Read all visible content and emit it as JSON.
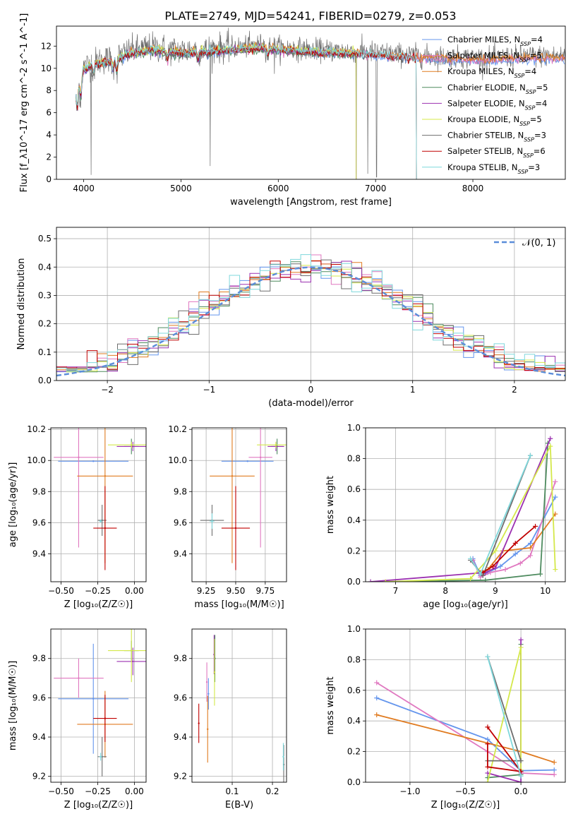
{
  "title": "PLATE=2749, MJD=54241, FIBERID=0279, z=0.053",
  "colors": {
    "chabrier_miles": "#6495ED",
    "salpeter_miles": "#E078C0",
    "kroupa_miles": "#E07B20",
    "chabrier_elodie": "#4E8B5F",
    "salpeter_elodie": "#9B30B0",
    "kroupa_elodie": "#D4E84A",
    "chabrier_stelib": "#6E6E6E",
    "salpeter_stelib": "#C00000",
    "kroupa_stelib": "#7FD8DC",
    "normal": "#5B8DD9"
  },
  "legend": [
    {
      "key": "chabrier_miles",
      "text": "Chabrier MILES, N",
      "sub": "SSP",
      "tail": "=4"
    },
    {
      "key": "salpeter_miles",
      "text": "Salpeter MILES, N",
      "sub": "SSP",
      "tail": "=5"
    },
    {
      "key": "kroupa_miles",
      "text": "Kroupa MILES, N",
      "sub": "SSP",
      "tail": "=4"
    },
    {
      "key": "chabrier_elodie",
      "text": "Chabrier ELODIE, N",
      "sub": "SSP",
      "tail": "=5"
    },
    {
      "key": "salpeter_elodie",
      "text": "Salpeter ELODIE, N",
      "sub": "SSP",
      "tail": "=4"
    },
    {
      "key": "kroupa_elodie",
      "text": "Kroupa ELODIE, N",
      "sub": "SSP",
      "tail": "=5"
    },
    {
      "key": "chabrier_stelib",
      "text": "Chabrier STELIB, N",
      "sub": "SSP",
      "tail": "=3"
    },
    {
      "key": "salpeter_stelib",
      "text": "Salpeter STELIB, N",
      "sub": "SSP",
      "tail": "=6"
    },
    {
      "key": "kroupa_stelib",
      "text": "Kroupa STELIB, N",
      "sub": "SSP",
      "tail": "=3"
    }
  ],
  "chart_data": [
    {
      "id": "spectrum",
      "type": "line",
      "xlabel": "wavelength [Angstrom, rest frame]",
      "ylabel": "Flux [f_λ10^-17 erg cm^-2 s^-1 A^-1]",
      "xlim": [
        3720,
        8950
      ],
      "ylim": [
        0,
        13.8
      ],
      "xticks": [
        4000,
        5000,
        6000,
        7000,
        8000
      ],
      "yticks": [
        0,
        2,
        4,
        6,
        8,
        10,
        12
      ],
      "grid": false,
      "continuum": [
        [
          3920,
          8.2
        ],
        [
          4000,
          10.1
        ],
        [
          4100,
          10.6
        ],
        [
          4300,
          10.9
        ],
        [
          4500,
          11.6
        ],
        [
          4700,
          11.9
        ],
        [
          5000,
          11.6
        ],
        [
          5300,
          11.8
        ],
        [
          5600,
          11.9
        ],
        [
          5800,
          12.1
        ],
        [
          6000,
          11.9
        ],
        [
          6300,
          11.7
        ],
        [
          6600,
          11.6
        ],
        [
          6900,
          11.5
        ],
        [
          7200,
          11.3
        ],
        [
          7500,
          11.1
        ],
        [
          7800,
          11.0
        ],
        [
          8200,
          10.9
        ],
        [
          8500,
          11.1
        ],
        [
          8950,
          11.1
        ]
      ],
      "model_ranges": {
        "chabrier_miles": [
          3920,
          8950
        ],
        "salpeter_miles": [
          3920,
          8950
        ],
        "kroupa_miles": [
          3920,
          8950
        ],
        "chabrier_elodie": [
          3920,
          6800
        ],
        "salpeter_elodie": [
          3920,
          6800
        ],
        "kroupa_elodie": [
          3920,
          6800
        ],
        "chabrier_stelib": [
          3920,
          7420
        ],
        "salpeter_stelib": [
          3920,
          7420
        ],
        "kroupa_stelib": [
          3920,
          7420
        ]
      },
      "data_range": [
        3920,
        8950
      ]
    },
    {
      "id": "residuals",
      "type": "step",
      "xlabel": "(data-model)/error",
      "ylabel": "Normed distribution",
      "xlim": [
        -2.5,
        2.5
      ],
      "ylim": [
        0,
        0.54
      ],
      "xticks": [
        -2,
        -1,
        0,
        1,
        2
      ],
      "yticks": [
        0.0,
        0.1,
        0.2,
        0.3,
        0.4,
        0.5
      ],
      "grid": true,
      "bins": 50,
      "normal_label": "𝒩(0, 1)",
      "legend_placement": "top-right"
    },
    {
      "id": "age_vs_Z",
      "type": "errorbar",
      "xlabel": "Z [log₁₀(Z/Z☉)]",
      "ylabel": "age  [log₁₀(age/yr)]",
      "xlim": [
        -0.57,
        0.08
      ],
      "ylim": [
        9.22,
        10.21
      ],
      "xticks": [
        -0.5,
        -0.25,
        0.0
      ],
      "yticks": [
        9.4,
        9.6,
        9.8,
        10.0,
        10.2
      ],
      "grid": true,
      "points": [
        {
          "key": "chabrier_miles",
          "x": -0.28,
          "xerr": 0.24,
          "y": 9.995,
          "yerr": 0.0
        },
        {
          "key": "salpeter_miles",
          "x": -0.38,
          "xerr": 0.17,
          "y": 10.02,
          "yerr": 0.58
        },
        {
          "key": "kroupa_miles",
          "x": -0.2,
          "xerr": 0.19,
          "y": 9.9,
          "yerr": 0.56
        },
        {
          "key": "chabrier_elodie",
          "x": -0.02,
          "xerr": 0.05,
          "y": 10.09,
          "yerr": 0.05
        },
        {
          "key": "salpeter_elodie",
          "x": -0.01,
          "xerr": 0.11,
          "y": 10.09,
          "yerr": 0.03
        },
        {
          "key": "kroupa_elodie",
          "x": -0.02,
          "xerr": 0.16,
          "y": 10.1,
          "yerr": 0.02
        },
        {
          "key": "chabrier_stelib",
          "x": -0.22,
          "xerr": 0.03,
          "y": 9.615,
          "yerr": 0.1
        },
        {
          "key": "salpeter_stelib",
          "x": -0.2,
          "xerr": 0.08,
          "y": 9.565,
          "yerr": 0.27
        },
        {
          "key": "kroupa_stelib",
          "x": -0.23,
          "xerr": 0.01,
          "y": 9.61,
          "yerr": 0.01
        }
      ]
    },
    {
      "id": "age_vs_mass",
      "type": "errorbar",
      "xlabel": "mass [log₁₀(M/M☉)]",
      "ylabel": "",
      "xlim": [
        9.13,
        9.93
      ],
      "ylim": [
        9.22,
        10.21
      ],
      "xticks": [
        9.25,
        9.5,
        9.75
      ],
      "yticks": [
        9.4,
        9.6,
        9.8,
        10.0,
        10.2
      ],
      "grid": true,
      "points": [
        {
          "key": "chabrier_miles",
          "x": 9.6,
          "xerr": 0.22,
          "y": 9.995,
          "yerr": 0.0
        },
        {
          "key": "salpeter_miles",
          "x": 9.71,
          "xerr": 0.1,
          "y": 10.02,
          "yerr": 0.58
        },
        {
          "key": "kroupa_miles",
          "x": 9.47,
          "xerr": 0.19,
          "y": 9.9,
          "yerr": 0.56
        },
        {
          "key": "chabrier_elodie",
          "x": 9.85,
          "xerr": 0.05,
          "y": 10.09,
          "yerr": 0.05
        },
        {
          "key": "salpeter_elodie",
          "x": 9.84,
          "xerr": 0.07,
          "y": 10.09,
          "yerr": 0.03
        },
        {
          "key": "kroupa_elodie",
          "x": 9.84,
          "xerr": 0.16,
          "y": 10.1,
          "yerr": 0.02
        },
        {
          "key": "chabrier_stelib",
          "x": 9.3,
          "xerr": 0.1,
          "y": 9.615,
          "yerr": 0.1
        },
        {
          "key": "salpeter_stelib",
          "x": 9.5,
          "xerr": 0.12,
          "y": 9.565,
          "yerr": 0.27
        },
        {
          "key": "kroupa_stelib",
          "x": 9.3,
          "xerr": 0.02,
          "y": 9.61,
          "yerr": 0.05
        }
      ]
    },
    {
      "id": "weight_vs_age",
      "type": "line",
      "xlabel": "age  [log₁₀(age/yr)]",
      "ylabel": "mass weight",
      "xlim": [
        6.4,
        10.4
      ],
      "ylim": [
        0,
        1.0
      ],
      "xticks": [
        7,
        8,
        9,
        10
      ],
      "yticks": [
        0.0,
        0.2,
        0.4,
        0.6,
        0.8,
        1.0
      ],
      "grid": true,
      "series": [
        {
          "key": "chabrier_miles",
          "x": [
            8.55,
            8.7,
            8.85,
            9.1,
            9.4,
            9.7,
            10.2
          ],
          "y": [
            0.15,
            0.04,
            0.06,
            0.1,
            0.18,
            0.25,
            0.55
          ]
        },
        {
          "key": "salpeter_miles",
          "x": [
            8.55,
            8.7,
            8.9,
            9.2,
            9.5,
            9.7,
            10.2
          ],
          "y": [
            0.14,
            0.03,
            0.06,
            0.08,
            0.12,
            0.17,
            0.65
          ]
        },
        {
          "key": "kroupa_miles",
          "x": [
            8.7,
            8.85,
            9.15,
            9.7,
            10.2
          ],
          "y": [
            0.06,
            0.08,
            0.2,
            0.22,
            0.44
          ]
        },
        {
          "key": "chabrier_elodie",
          "x": [
            7.0,
            8.8,
            9.9,
            10.05
          ],
          "y": [
            0.0,
            0.01,
            0.05,
            0.9
          ]
        },
        {
          "key": "salpeter_elodie",
          "x": [
            6.5,
            8.8,
            9.0,
            10.1
          ],
          "y": [
            0.0,
            0.06,
            0.09,
            0.93
          ]
        },
        {
          "key": "kroupa_elodie",
          "x": [
            6.8,
            8.5,
            9.0,
            10.1,
            10.2
          ],
          "y": [
            0.0,
            0.02,
            0.2,
            0.88,
            0.08
          ]
        },
        {
          "key": "chabrier_stelib",
          "x": [
            8.5,
            8.75,
            9.7
          ],
          "y": [
            0.14,
            0.04,
            0.82
          ]
        },
        {
          "key": "salpeter_stelib",
          "x": [
            8.75,
            8.95,
            9.4,
            9.8
          ],
          "y": [
            0.06,
            0.1,
            0.25,
            0.36
          ]
        },
        {
          "key": "kroupa_stelib",
          "x": [
            8.5,
            8.7,
            9.7
          ],
          "y": [
            0.15,
            0.05,
            0.82
          ]
        }
      ]
    },
    {
      "id": "mass_vs_Z",
      "type": "errorbar",
      "xlabel": "Z [log₁₀(Z/Z☉)]",
      "ylabel": "mass [log₁₀(M/M☉)]",
      "xlim": [
        -0.57,
        0.08
      ],
      "ylim": [
        9.17,
        9.95
      ],
      "xticks": [
        -0.5,
        -0.25,
        0.0
      ],
      "yticks": [
        9.2,
        9.4,
        9.6,
        9.8
      ],
      "grid": true,
      "points": [
        {
          "key": "chabrier_miles",
          "x": -0.28,
          "xerr": 0.24,
          "y": 9.595,
          "yerr": 0.28
        },
        {
          "key": "salpeter_miles",
          "x": -0.38,
          "xerr": 0.17,
          "y": 9.7,
          "yerr": 0.1
        },
        {
          "key": "kroupa_miles",
          "x": -0.2,
          "xerr": 0.19,
          "y": 9.465,
          "yerr": 0.17
        },
        {
          "key": "chabrier_elodie",
          "x": -0.02,
          "xerr": 0.05,
          "y": 9.84,
          "yerr": 0.05
        },
        {
          "key": "salpeter_elodie",
          "x": -0.01,
          "xerr": 0.11,
          "y": 9.785,
          "yerr": 0.07
        },
        {
          "key": "kroupa_elodie",
          "x": -0.02,
          "xerr": 0.16,
          "y": 9.84,
          "yerr": 0.16
        },
        {
          "key": "chabrier_stelib",
          "x": -0.22,
          "xerr": 0.03,
          "y": 9.3,
          "yerr": 0.1
        },
        {
          "key": "salpeter_stelib",
          "x": -0.2,
          "xerr": 0.08,
          "y": 9.495,
          "yerr": 0.12
        },
        {
          "key": "kroupa_stelib",
          "x": -0.23,
          "xerr": 0.01,
          "y": 9.3,
          "yerr": 0.02
        }
      ]
    },
    {
      "id": "mass_vs_ebv",
      "type": "errorbar",
      "xlabel": "E(B-V)",
      "ylabel": "",
      "xlim": [
        0.0,
        0.235
      ],
      "ylim": [
        9.17,
        9.95
      ],
      "xticks": [
        0.1,
        0.2
      ],
      "yticks": [
        9.2,
        9.4,
        9.6,
        9.8
      ],
      "grid": true,
      "points": [
        {
          "key": "chabrier_miles",
          "x": 0.041,
          "y": 9.62,
          "yerr": 0.08
        },
        {
          "key": "salpeter_miles",
          "x": 0.037,
          "y": 9.68,
          "yerr": 0.1
        },
        {
          "key": "kroupa_miles",
          "x": 0.039,
          "y": 9.44,
          "yerr": 0.17
        },
        {
          "key": "chabrier_elodie",
          "x": 0.057,
          "y": 9.8,
          "yerr": 0.12
        },
        {
          "key": "salpeter_elodie",
          "x": 0.055,
          "y": 9.82,
          "yerr": 0.1
        },
        {
          "key": "kroupa_elodie",
          "x": 0.056,
          "y": 9.73,
          "yerr": 0.17
        },
        {
          "key": "chabrier_stelib",
          "x": 0.228,
          "y": 9.26,
          "yerr": 0.1
        },
        {
          "key": "salpeter_stelib",
          "x": 0.017,
          "y": 9.47,
          "yerr": 0.1
        },
        {
          "key": "kroupa_stelib",
          "x": 0.227,
          "y": 9.3,
          "yerr": 0.07
        }
      ]
    },
    {
      "id": "weight_vs_Z",
      "type": "line",
      "xlabel": "Z [log₁₀(Z/Z☉)]",
      "ylabel": "mass weight",
      "xlim": [
        -1.4,
        0.4
      ],
      "ylim": [
        0,
        1.0
      ],
      "xticks": [
        -1.0,
        -0.5,
        0.0
      ],
      "yticks": [
        0.0,
        0.2,
        0.4,
        0.6,
        0.8,
        1.0
      ],
      "grid": true,
      "series": [
        {
          "key": "chabrier_miles",
          "x": [
            -1.3,
            -0.3,
            0.0,
            0.3
          ],
          "y": [
            0.55,
            0.28,
            0.075,
            0.08
          ]
        },
        {
          "key": "salpeter_miles",
          "x": [
            -1.3,
            -0.3,
            0.0,
            0.3
          ],
          "y": [
            0.65,
            0.2,
            0.06,
            0.05
          ]
        },
        {
          "key": "kroupa_miles",
          "x": [
            -1.3,
            0.0,
            0.3
          ],
          "y": [
            0.44,
            0.2,
            0.13
          ]
        },
        {
          "key": "chabrier_elodie",
          "x": [
            -0.3,
            0.0,
            0.0
          ],
          "y": [
            0.03,
            0.05,
            0.9
          ]
        },
        {
          "key": "salpeter_elodie",
          "x": [
            -0.3,
            0.0,
            0.0
          ],
          "y": [
            0.06,
            0.0,
            0.93
          ]
        },
        {
          "key": "kroupa_elodie",
          "x": [
            -0.3,
            0.0,
            0.0
          ],
          "y": [
            0.0,
            0.88,
            0.08
          ]
        },
        {
          "key": "chabrier_stelib",
          "x": [
            -0.3,
            0.0,
            -0.3
          ],
          "y": [
            0.82,
            0.14,
            0.14
          ]
        },
        {
          "key": "salpeter_stelib",
          "x": [
            -0.3,
            0.0,
            -0.3,
            -0.3
          ],
          "y": [
            0.36,
            0.07,
            0.1,
            0.25
          ]
        },
        {
          "key": "kroupa_stelib",
          "x": [
            -0.3,
            0.0
          ],
          "y": [
            0.82,
            0.04
          ]
        }
      ]
    }
  ]
}
